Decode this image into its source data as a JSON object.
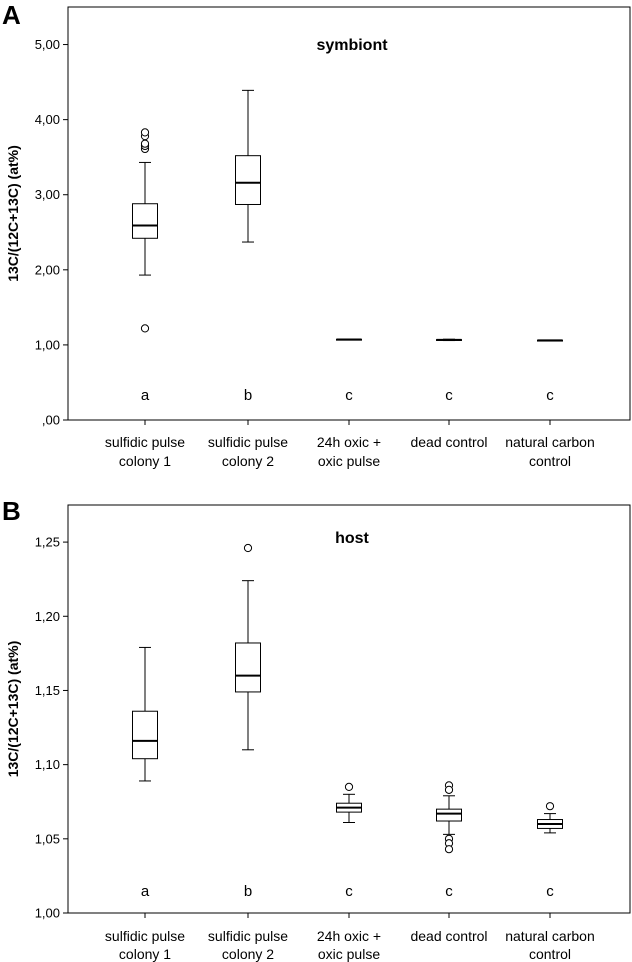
{
  "chart_data": [
    {
      "panel": "A",
      "type": "box",
      "title": "symbiont",
      "ylabel": "13C/(12C+13C)   (at%)",
      "ylim": [
        0,
        5.5
      ],
      "yticks": [
        0,
        1,
        2,
        3,
        4,
        5
      ],
      "ytick_labels": [
        ",00",
        "1,00",
        "2,00",
        "3,00",
        "4,00",
        "5,00"
      ],
      "categories": [
        [
          "sulfidic pulse",
          "colony 1"
        ],
        [
          "sulfidic pulse",
          "colony 2"
        ],
        [
          "24h oxic +",
          "oxic pulse"
        ],
        [
          "dead control"
        ],
        [
          "natural carbon",
          "control"
        ]
      ],
      "significance": [
        "a",
        "b",
        "c",
        "c",
        "c"
      ],
      "boxes": [
        {
          "whisker_low": 1.93,
          "q1": 2.42,
          "median": 2.59,
          "q3": 2.88,
          "whisker_high": 3.43,
          "outliers": [
            1.22,
            3.61,
            3.65,
            3.68,
            3.78,
            3.83
          ]
        },
        {
          "whisker_low": 2.37,
          "q1": 2.87,
          "median": 3.16,
          "q3": 3.52,
          "whisker_high": 4.39,
          "outliers": []
        },
        {
          "whisker_low": 1.068,
          "q1": 1.07,
          "median": 1.072,
          "q3": 1.074,
          "whisker_high": 1.076,
          "outliers": []
        },
        {
          "whisker_low": 1.058,
          "q1": 1.063,
          "median": 1.067,
          "q3": 1.07,
          "whisker_high": 1.076,
          "outliers": []
        },
        {
          "whisker_low": 1.053,
          "q1": 1.057,
          "median": 1.06,
          "q3": 1.062,
          "whisker_high": 1.065,
          "outliers": []
        }
      ]
    },
    {
      "panel": "B",
      "type": "box",
      "title": "host",
      "ylabel": "13C/(12C+13C)   (at%)",
      "ylim": [
        1.0,
        1.275
      ],
      "yticks": [
        1.0,
        1.05,
        1.1,
        1.15,
        1.2,
        1.25
      ],
      "ytick_labels": [
        "1,00",
        "1,05",
        "1,10",
        "1,15",
        "1,20",
        "1,25"
      ],
      "categories": [
        [
          "sulfidic pulse",
          "colony 1"
        ],
        [
          "sulfidic pulse",
          "colony 2"
        ],
        [
          "24h oxic +",
          "oxic pulse"
        ],
        [
          "dead control"
        ],
        [
          "natural carbon",
          "control"
        ]
      ],
      "significance": [
        "a",
        "b",
        "c",
        "c",
        "c"
      ],
      "boxes": [
        {
          "whisker_low": 1.089,
          "q1": 1.104,
          "median": 1.116,
          "q3": 1.136,
          "whisker_high": 1.179,
          "outliers": []
        },
        {
          "whisker_low": 1.11,
          "q1": 1.149,
          "median": 1.16,
          "q3": 1.182,
          "whisker_high": 1.224,
          "outliers": [
            1.246
          ]
        },
        {
          "whisker_low": 1.061,
          "q1": 1.068,
          "median": 1.071,
          "q3": 1.074,
          "whisker_high": 1.08,
          "outliers": [
            1.085
          ]
        },
        {
          "whisker_low": 1.053,
          "q1": 1.062,
          "median": 1.067,
          "q3": 1.07,
          "whisker_high": 1.079,
          "outliers": [
            1.086,
            1.083,
            1.05,
            1.047,
            1.043
          ]
        },
        {
          "whisker_low": 1.054,
          "q1": 1.057,
          "median": 1.06,
          "q3": 1.063,
          "whisker_high": 1.067,
          "outliers": [
            1.072
          ]
        }
      ]
    }
  ]
}
